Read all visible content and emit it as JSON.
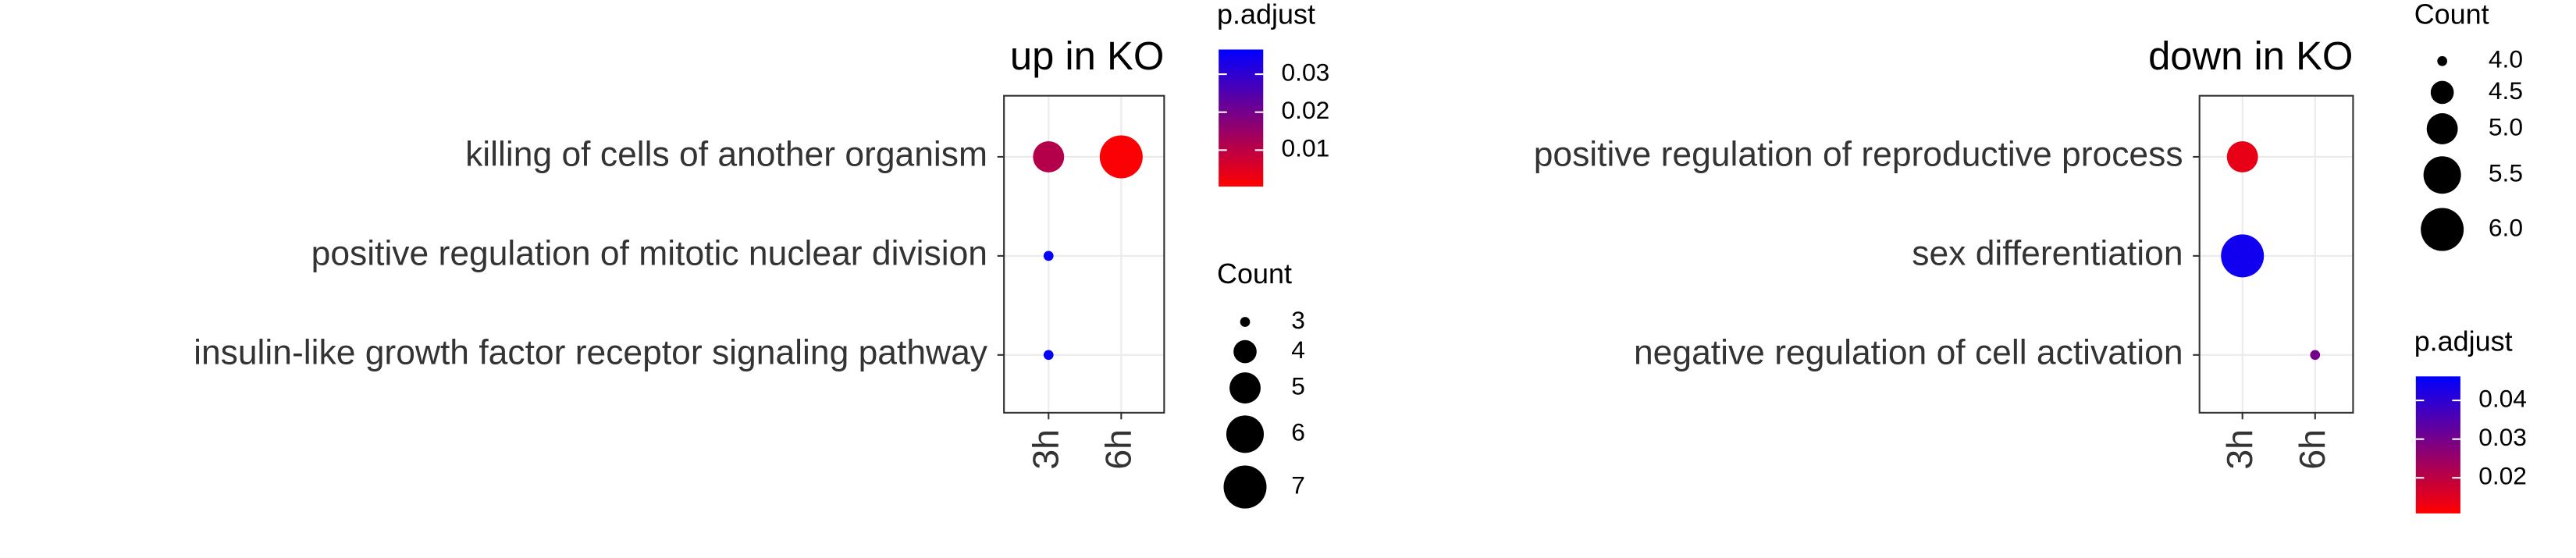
{
  "chart_data": [
    {
      "type": "dotplot",
      "title": "up in KO",
      "categories": [
        "3h",
        "6h"
      ],
      "y_categories": [
        "killing of cells of another organism",
        "positive regulation of mitotic nuclear division",
        "insulin-like growth factor receptor signaling pathway"
      ],
      "count": [
        [
          5,
          7
        ],
        [
          3,
          null
        ],
        [
          3,
          null
        ]
      ],
      "p_adjust": [
        [
          0.011,
          0.001
        ],
        [
          0.036,
          null
        ],
        [
          0.036,
          null
        ]
      ],
      "legend_order": [
        "color",
        "size"
      ],
      "color_legend_title": "p.adjust",
      "color_lim": [
        0.0004,
        0.0365
      ],
      "color_ticks": [
        0.01,
        0.02,
        0.03
      ],
      "color_low": "#ff0000",
      "color_high": "#0000ff",
      "size_legend_title": "Count",
      "size_ticks": [
        3,
        4,
        5,
        6,
        7
      ],
      "grid": true
    },
    {
      "type": "dotplot",
      "title": "down in KO",
      "categories": [
        "3h",
        "6h"
      ],
      "y_categories": [
        "positive regulation of reproductive process",
        "sex differentiation",
        "negative regulation of cell activation"
      ],
      "count": [
        [
          5,
          null
        ],
        [
          6,
          null
        ],
        [
          null,
          4
        ]
      ],
      "p_adjust": [
        [
          0.014,
          null
        ],
        [
          0.044,
          null
        ],
        [
          null,
          0.03
        ]
      ],
      "legend_order": [
        "size",
        "color"
      ],
      "color_legend_title": "p.adjust",
      "color_lim": [
        0.0108,
        0.0462
      ],
      "color_ticks": [
        0.02,
        0.03,
        0.04
      ],
      "color_low": "#ff0000",
      "color_high": "#0000ff",
      "size_legend_title": "Count",
      "size_ticks": [
        {
          "value": 4,
          "label": "4.0"
        },
        {
          "value": 4.5,
          "label": "4.5"
        },
        {
          "value": 5,
          "label": "5.0"
        },
        {
          "value": 5.5,
          "label": "5.5"
        },
        {
          "value": 6,
          "label": "6.0"
        }
      ],
      "grid": true
    }
  ]
}
